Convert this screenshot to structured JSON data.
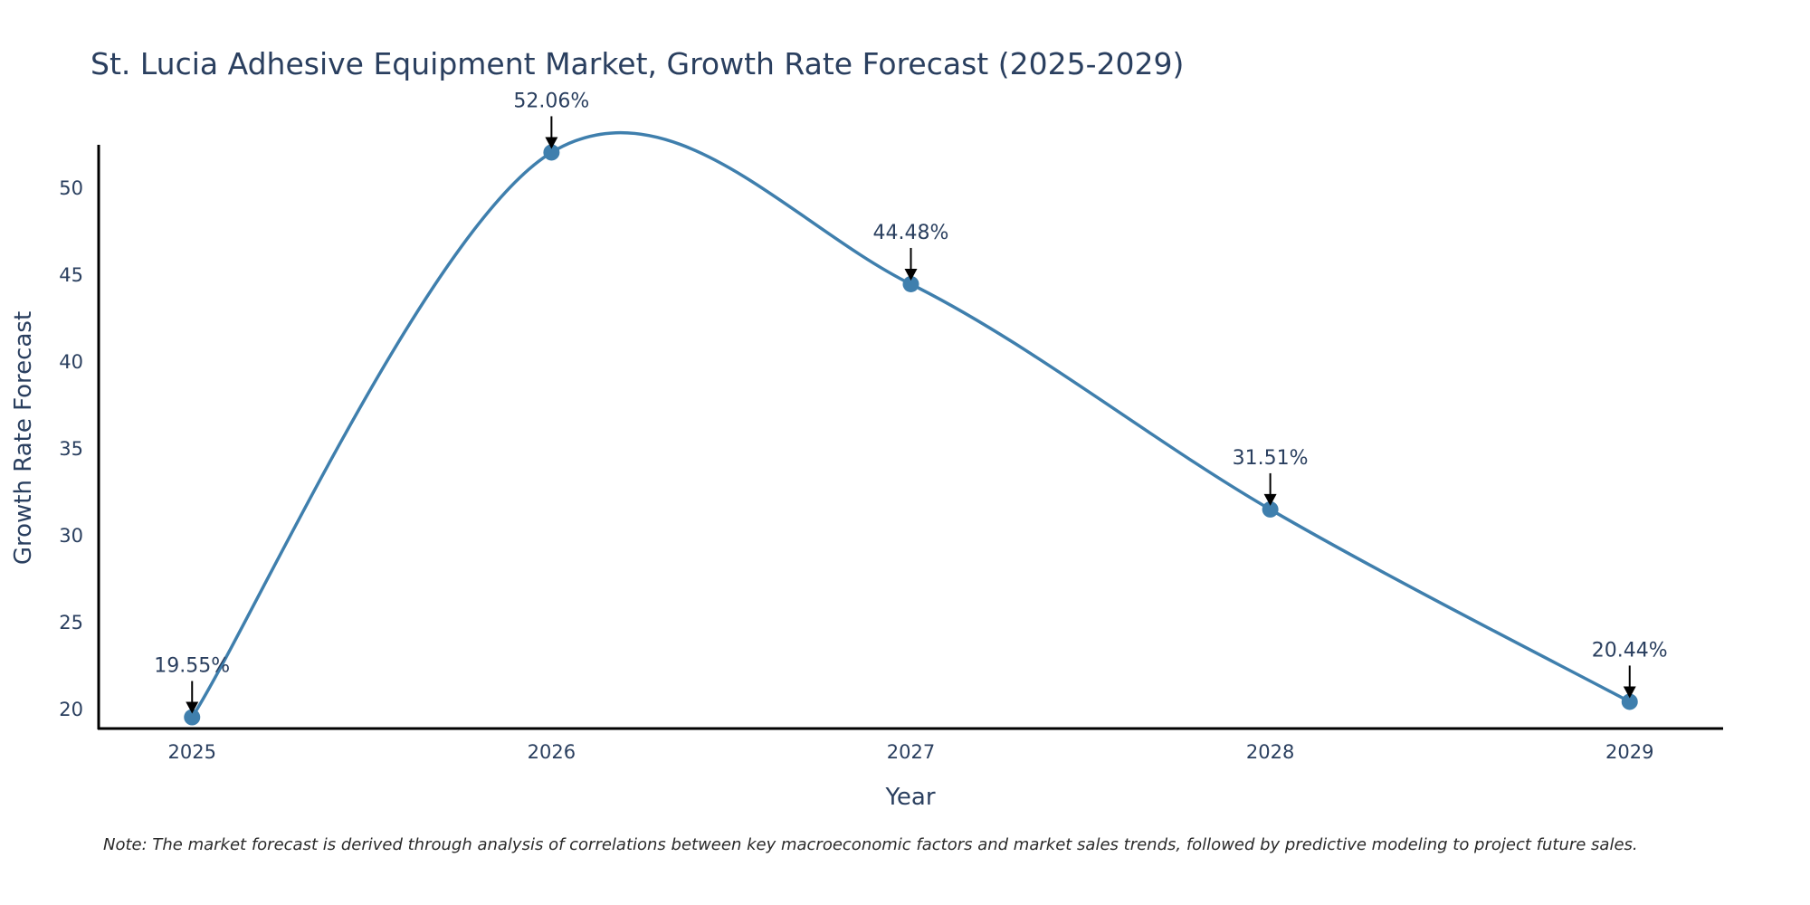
{
  "chart_data": {
    "type": "line",
    "title": "St. Lucia Adhesive Equipment Market, Growth Rate Forecast (2025-2029)",
    "xlabel": "Year",
    "ylabel": "Growth Rate Forecast",
    "categories": [
      "2025",
      "2026",
      "2027",
      "2028",
      "2029"
    ],
    "values": [
      19.55,
      52.06,
      44.48,
      31.51,
      20.44
    ],
    "data_labels": [
      "19.55%",
      "52.06%",
      "44.48%",
      "31.51%",
      "20.44%"
    ],
    "yticks": [
      20,
      25,
      30,
      35,
      40,
      45,
      50
    ],
    "ylim": [
      18.9,
      52.5
    ],
    "xlim": [
      -0.26,
      4.26
    ],
    "line_shape": "spline",
    "line_color": "#3f7fad",
    "marker_color": "#3f7fad",
    "grid": false,
    "note": "Note: The market forecast is derived through analysis of correlations between key macroeconomic factors and market sales trends, followed by predictive modeling to project future sales."
  }
}
